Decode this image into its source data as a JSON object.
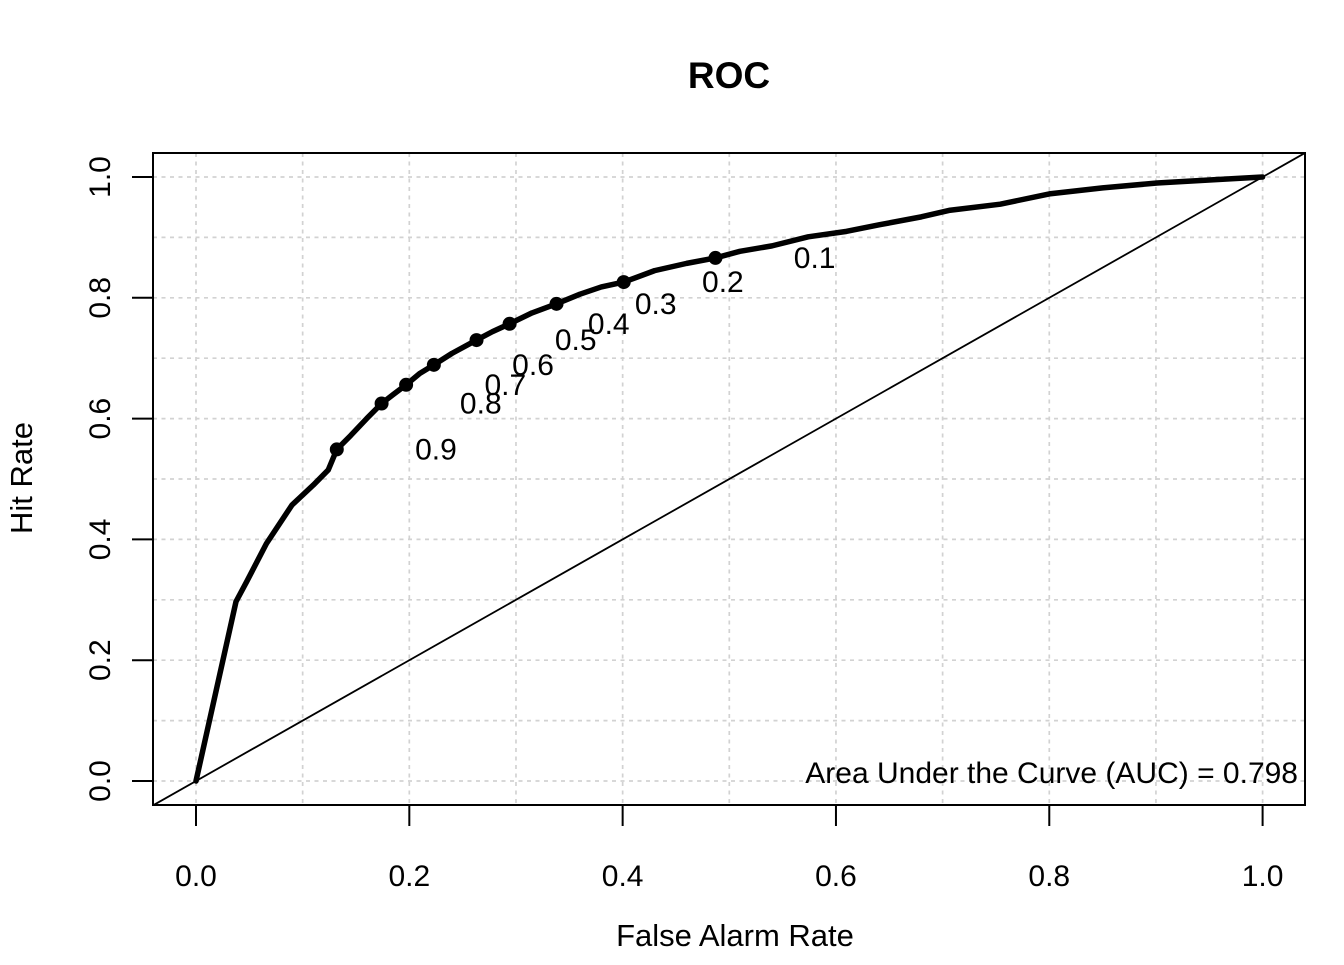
{
  "chart_data": {
    "type": "line",
    "title": "ROC",
    "xlabel": "False Alarm Rate",
    "ylabel": "Hit Rate",
    "annotation": "Area Under the Curve (AUC) = 0.798",
    "auc": 0.798,
    "xlim": [
      0,
      1
    ],
    "ylim": [
      0,
      1
    ],
    "x_ticks": [
      {
        "value": 0.0,
        "label": "0.0"
      },
      {
        "value": 0.2,
        "label": "0.2"
      },
      {
        "value": 0.4,
        "label": "0.4"
      },
      {
        "value": 0.6,
        "label": "0.6"
      },
      {
        "value": 0.8,
        "label": "0.8"
      },
      {
        "value": 1.0,
        "label": "1.0"
      }
    ],
    "y_ticks": [
      {
        "value": 0.0,
        "label": "0.0"
      },
      {
        "value": 0.2,
        "label": "0.2"
      },
      {
        "value": 0.4,
        "label": "0.4"
      },
      {
        "value": 0.6,
        "label": "0.6"
      },
      {
        "value": 0.8,
        "label": "0.8"
      },
      {
        "value": 1.0,
        "label": "1.0"
      }
    ],
    "grid": {
      "interval": 0.1,
      "style": "dashed",
      "color": "#d2d2d2"
    },
    "colors": {
      "curve": "#000000",
      "diagonal": "#000000",
      "points": "#000000",
      "background": "#ffffff"
    },
    "series": [
      {
        "name": "roc-curve",
        "points": [
          [
            0.0,
            0.0
          ],
          [
            0.0375,
            0.297
          ],
          [
            0.0475,
            0.33
          ],
          [
            0.066,
            0.393
          ],
          [
            0.09,
            0.457
          ],
          [
            0.11,
            0.49
          ],
          [
            0.124,
            0.515
          ],
          [
            0.132,
            0.549
          ],
          [
            0.145,
            0.572
          ],
          [
            0.16,
            0.6
          ],
          [
            0.174,
            0.625
          ],
          [
            0.185,
            0.64
          ],
          [
            0.197,
            0.656
          ],
          [
            0.21,
            0.675
          ],
          [
            0.223,
            0.689
          ],
          [
            0.24,
            0.708
          ],
          [
            0.263,
            0.73
          ],
          [
            0.278,
            0.744
          ],
          [
            0.294,
            0.757
          ],
          [
            0.315,
            0.775
          ],
          [
            0.338,
            0.79
          ],
          [
            0.36,
            0.806
          ],
          [
            0.38,
            0.818
          ],
          [
            0.401,
            0.826
          ],
          [
            0.43,
            0.845
          ],
          [
            0.46,
            0.857
          ],
          [
            0.487,
            0.866
          ],
          [
            0.51,
            0.877
          ],
          [
            0.54,
            0.886
          ],
          [
            0.574,
            0.901
          ],
          [
            0.61,
            0.91
          ],
          [
            0.641,
            0.921
          ],
          [
            0.68,
            0.934
          ],
          [
            0.707,
            0.945
          ],
          [
            0.754,
            0.955
          ],
          [
            0.8,
            0.972
          ],
          [
            0.85,
            0.982
          ],
          [
            0.901,
            0.99
          ],
          [
            0.95,
            0.995
          ],
          [
            1.0,
            1.0
          ]
        ]
      },
      {
        "name": "chance-diagonal",
        "points": [
          [
            -0.04,
            -0.04
          ],
          [
            1.04,
            1.04
          ]
        ]
      }
    ],
    "cutoffs": [
      {
        "label": "0.1",
        "x": 0.487,
        "y": 0.866
      },
      {
        "label": "0.2",
        "x": 0.401,
        "y": 0.826
      },
      {
        "label": "0.3",
        "x": 0.338,
        "y": 0.79
      },
      {
        "label": "0.4",
        "x": 0.294,
        "y": 0.757
      },
      {
        "label": "0.5",
        "x": 0.263,
        "y": 0.73
      },
      {
        "label": "0.6",
        "x": 0.223,
        "y": 0.689
      },
      {
        "label": "0.7",
        "x": 0.197,
        "y": 0.656
      },
      {
        "label": "0.8",
        "x": 0.174,
        "y": 0.625
      },
      {
        "label": "0.9",
        "x": 0.132,
        "y": 0.549
      }
    ],
    "cutoff_label_offset_x": 0.093
  }
}
